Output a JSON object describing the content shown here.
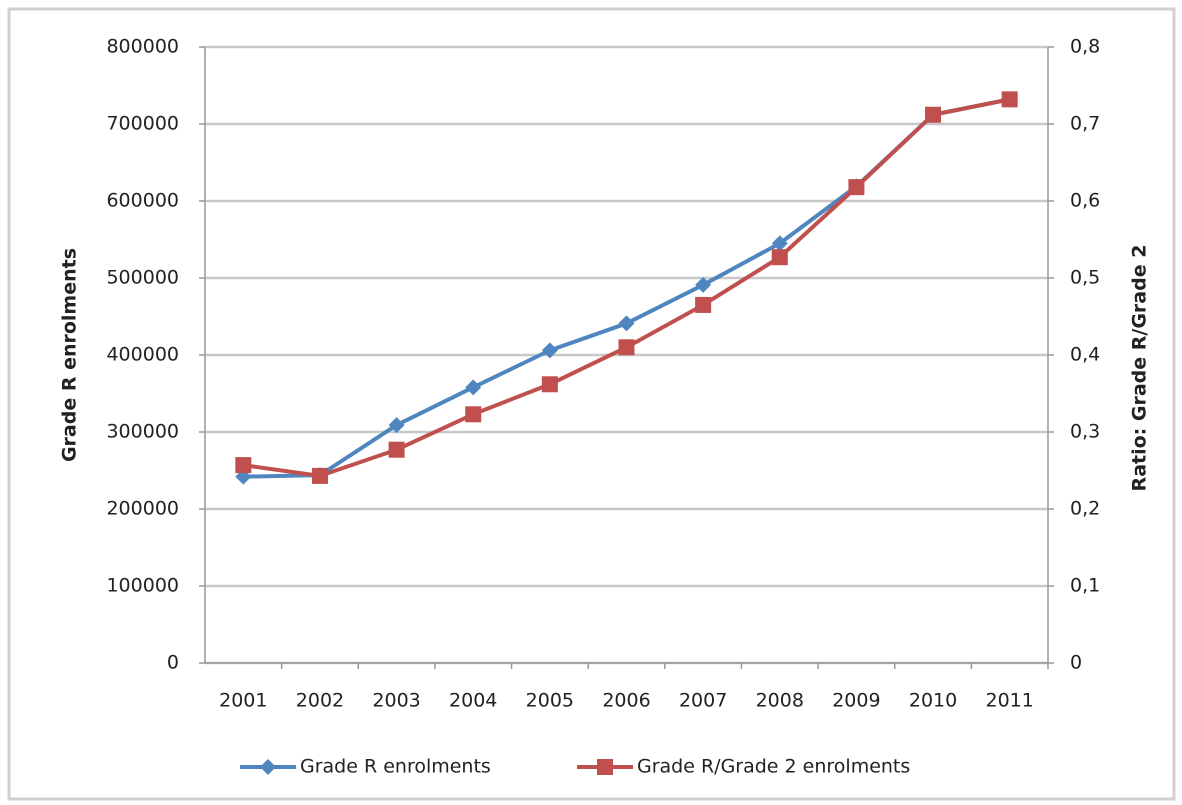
{
  "chart_data": {
    "type": "line",
    "categories": [
      "2001",
      "2002",
      "2003",
      "2004",
      "2005",
      "2006",
      "2007",
      "2008",
      "2009",
      "2010",
      "2011"
    ],
    "y_label": "Grade R enrolments",
    "y2_label": "Ratio: Grade R/Grade 2",
    "ylim": [
      0,
      800000
    ],
    "yticks": [
      0,
      100000,
      200000,
      300000,
      400000,
      500000,
      600000,
      700000,
      800000
    ],
    "y2lim": [
      0,
      0.8
    ],
    "y2ticks": [
      0,
      {
        "value": 0.1,
        "label": "0,1"
      },
      {
        "value": 0.2,
        "label": "0,2"
      },
      {
        "value": 0.3,
        "label": "0,3"
      },
      {
        "value": 0.4,
        "label": "0,4"
      },
      {
        "value": 0.5,
        "label": "0,5"
      },
      {
        "value": 0.6,
        "label": "0,6"
      },
      {
        "value": 0.7,
        "label": "0,7"
      },
      {
        "value": 0.8,
        "label": "0,8"
      }
    ],
    "grid": true,
    "legend": "bottom",
    "series": [
      {
        "name": "Grade R enrolments",
        "color": "#4f86c0",
        "marker": "diamond",
        "values": [
          242000,
          244000,
          309000,
          358000,
          406000,
          441000,
          491000,
          545000,
          619000,
          712000,
          732000
        ]
      },
      {
        "name": "Grade R/Grade 2 enrolments",
        "color": "#c0504d",
        "marker": "square",
        "axis": "y2",
        "values": [
          0.257,
          0.243,
          0.277,
          0.323,
          0.362,
          0.41,
          0.465,
          0.527,
          0.618,
          0.712,
          0.732
        ]
      }
    ]
  }
}
